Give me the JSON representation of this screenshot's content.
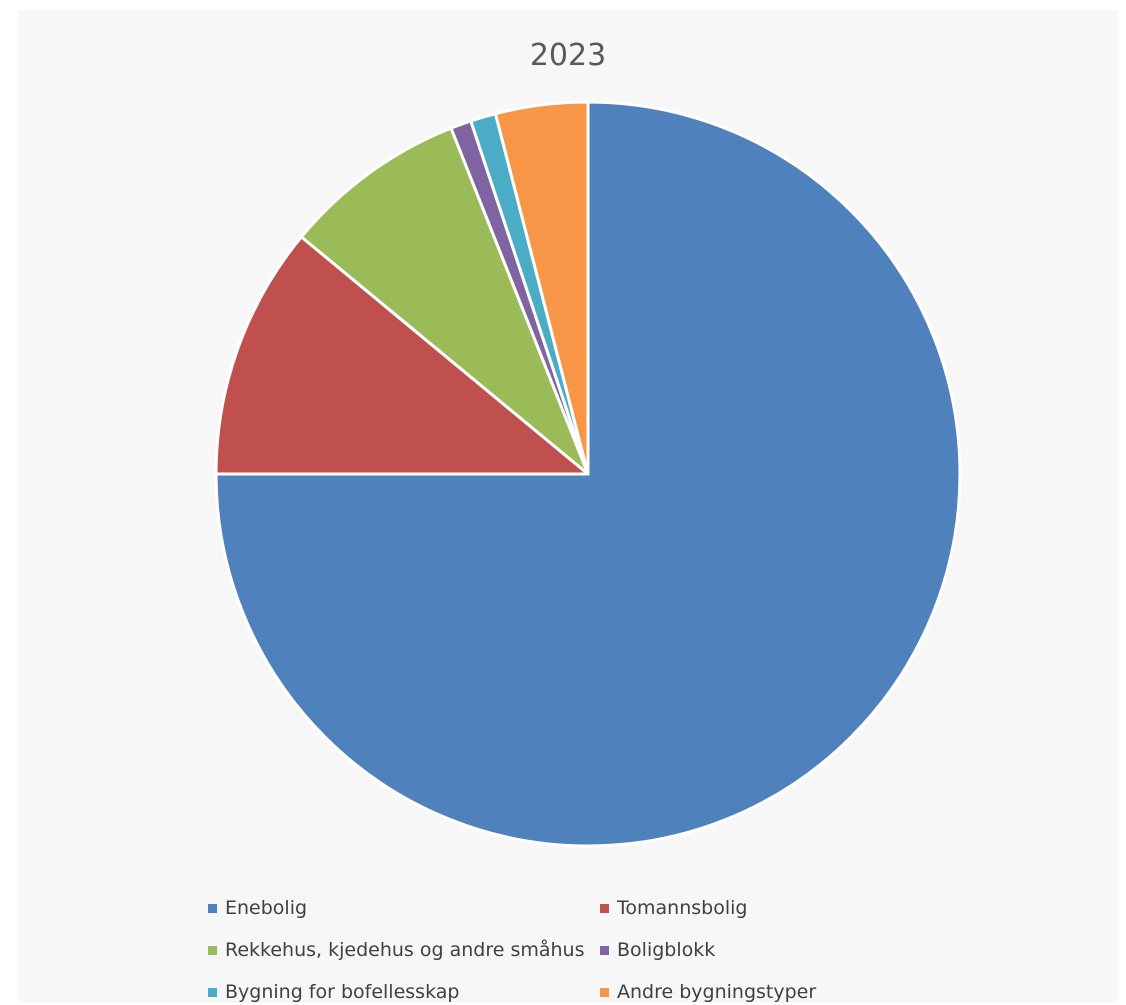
{
  "chart_data": {
    "type": "pie",
    "title": "2023",
    "categories": [
      "Enebolig",
      "Tomannsbolig",
      "Rekkehus, kjedehus og andre småhus",
      "Boligblokk",
      "Bygning for bofellesskap",
      "Andre bygningstyper"
    ],
    "values": [
      75.0,
      11.0,
      8.0,
      0.9,
      1.1,
      4.0
    ],
    "colors": [
      "#4f81bd",
      "#c0504d",
      "#9bbb59",
      "#8064a2",
      "#4bacc6",
      "#f79646"
    ],
    "legend": "bottom",
    "start": "12 o'clock",
    "direction": "clockwise"
  }
}
